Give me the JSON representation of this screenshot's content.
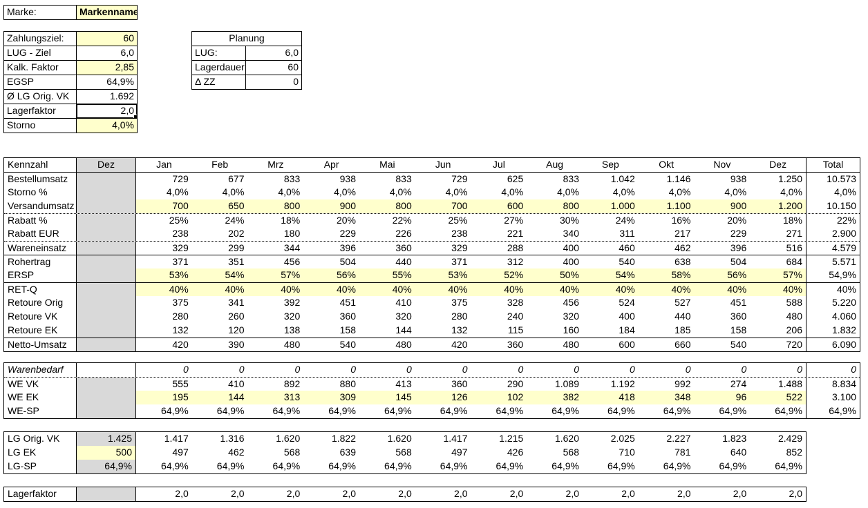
{
  "colors": {
    "highlight": "#FFFFCC",
    "input_fill": "#FFFFCC",
    "header_gray": "#D9D9D9"
  },
  "marke": {
    "label": "Marke:",
    "value": "Markenname"
  },
  "params": {
    "rows": [
      {
        "label": "Zahlungsziel:",
        "value": "60"
      },
      {
        "label": "LUG - Ziel",
        "value": "6,0"
      },
      {
        "label": "Kalk. Faktor",
        "value": "2,85"
      },
      {
        "label": "EGSP",
        "value": "64,9%"
      },
      {
        "label": "Ø LG Orig. VK",
        "value": "1.692"
      },
      {
        "label": "Lagerfaktor",
        "value": "2,0"
      },
      {
        "label": "Storno",
        "value": "4,0%"
      }
    ]
  },
  "planung": {
    "title": "Planung",
    "rows": [
      {
        "label": "LUG:",
        "value": "6,0"
      },
      {
        "label": "Lagerdauer:",
        "value": "60"
      },
      {
        "label": "Δ ZZ",
        "value": "0"
      }
    ]
  },
  "main_table": {
    "has_total": true,
    "col2_default": {
      "text": "",
      "bg": "gray"
    },
    "header": {
      "label_col": "Kennzahl",
      "col2": "Dez",
      "months": [
        "Jan",
        "Feb",
        "Mrz",
        "Apr",
        "Mai",
        "Jun",
        "Jul",
        "Aug",
        "Sep",
        "Okt",
        "Nov",
        "Dez"
      ],
      "total": "Total"
    },
    "rows": [
      {
        "label": "Bestellumsatz",
        "border_top": "solid",
        "values": [
          "729",
          "677",
          "833",
          "938",
          "833",
          "729",
          "625",
          "833",
          "1.042",
          "1.146",
          "938",
          "1.250"
        ],
        "total": "10.573"
      },
      {
        "label": "Storno %",
        "values": [
          "4,0%",
          "4,0%",
          "4,0%",
          "4,0%",
          "4,0%",
          "4,0%",
          "4,0%",
          "4,0%",
          "4,0%",
          "4,0%",
          "4,0%",
          "4,0%"
        ],
        "total": "4,0%"
      },
      {
        "label": "Versandumsatz",
        "highlight": true,
        "values": [
          "700",
          "650",
          "800",
          "900",
          "800",
          "700",
          "600",
          "800",
          "1.000",
          "1.100",
          "900",
          "1.200"
        ],
        "total": "10.150"
      },
      {
        "label": "Rabatt %",
        "border_top": "dotted",
        "values": [
          "25%",
          "24%",
          "18%",
          "20%",
          "22%",
          "25%",
          "27%",
          "30%",
          "24%",
          "16%",
          "20%",
          "18%"
        ],
        "total": "22%"
      },
      {
        "label": "Rabatt EUR",
        "values": [
          "238",
          "202",
          "180",
          "229",
          "226",
          "238",
          "221",
          "340",
          "311",
          "217",
          "229",
          "271"
        ],
        "total": "2.900"
      },
      {
        "label": "Wareneinsatz",
        "border_top": "dotted",
        "values": [
          "329",
          "299",
          "344",
          "396",
          "360",
          "329",
          "288",
          "400",
          "460",
          "462",
          "396",
          "516"
        ],
        "total": "4.579"
      },
      {
        "label": "Rohertrag",
        "border_top": "solid",
        "values": [
          "371",
          "351",
          "456",
          "504",
          "440",
          "371",
          "312",
          "400",
          "540",
          "638",
          "504",
          "684"
        ],
        "total": "5.571"
      },
      {
        "label": "ERSP",
        "highlight": true,
        "values": [
          "53%",
          "54%",
          "57%",
          "56%",
          "55%",
          "53%",
          "52%",
          "50%",
          "54%",
          "58%",
          "56%",
          "57%"
        ],
        "total": "54,9%"
      },
      {
        "label": "RET-Q",
        "border_top": "solid",
        "highlight": true,
        "values": [
          "40%",
          "40%",
          "40%",
          "40%",
          "40%",
          "40%",
          "40%",
          "40%",
          "40%",
          "40%",
          "40%",
          "40%"
        ],
        "total": "40%"
      },
      {
        "label": "Retoure Orig",
        "values": [
          "375",
          "341",
          "392",
          "451",
          "410",
          "375",
          "328",
          "456",
          "524",
          "527",
          "451",
          "588"
        ],
        "total": "5.220"
      },
      {
        "label": "Retoure VK",
        "values": [
          "280",
          "260",
          "320",
          "360",
          "320",
          "280",
          "240",
          "320",
          "400",
          "440",
          "360",
          "480"
        ],
        "total": "4.060"
      },
      {
        "label": "Retoure EK",
        "values": [
          "132",
          "120",
          "138",
          "158",
          "144",
          "132",
          "115",
          "160",
          "184",
          "185",
          "158",
          "206"
        ],
        "total": "1.832"
      },
      {
        "label": "Netto-Umsatz",
        "border_top": "solid",
        "values": [
          "420",
          "390",
          "480",
          "540",
          "480",
          "420",
          "360",
          "480",
          "600",
          "660",
          "540",
          "720"
        ],
        "total": "6.090"
      }
    ]
  },
  "warenbedarf_table": {
    "has_total": true,
    "col2_default": {
      "text": "",
      "bg": "gray"
    },
    "rows": [
      {
        "label": "Warenbedarf",
        "italic": true,
        "col2": {
          "text": "",
          "bg": "white"
        },
        "values": [
          "0",
          "0",
          "0",
          "0",
          "0",
          "0",
          "0",
          "0",
          "0",
          "0",
          "0",
          "0"
        ],
        "total": "0"
      },
      {
        "label": "WE VK",
        "border_top": "dotted",
        "values": [
          "555",
          "410",
          "892",
          "880",
          "413",
          "360",
          "290",
          "1.089",
          "1.192",
          "992",
          "274",
          "1.488"
        ],
        "total": "8.834"
      },
      {
        "label": "WE EK",
        "highlight": true,
        "values": [
          "195",
          "144",
          "313",
          "309",
          "145",
          "126",
          "102",
          "382",
          "418",
          "348",
          "96",
          "522"
        ],
        "total": "3.100"
      },
      {
        "label": "WE-SP",
        "values": [
          "64,9%",
          "64,9%",
          "64,9%",
          "64,9%",
          "64,9%",
          "64,9%",
          "64,9%",
          "64,9%",
          "64,9%",
          "64,9%",
          "64,9%",
          "64,9%"
        ],
        "total": "64,9%"
      }
    ]
  },
  "lg_table": {
    "has_total": false,
    "col2_default": {
      "text": "",
      "bg": "gray"
    },
    "rows": [
      {
        "label": "LG Orig. VK",
        "col2": {
          "text": "1.425",
          "bg": "gray"
        },
        "values": [
          "1.417",
          "1.316",
          "1.620",
          "1.822",
          "1.620",
          "1.417",
          "1.215",
          "1.620",
          "2.025",
          "2.227",
          "1.823",
          "2.429"
        ]
      },
      {
        "label": "LG EK",
        "col2": {
          "text": "500",
          "bg": "yellow"
        },
        "values": [
          "497",
          "462",
          "568",
          "639",
          "568",
          "497",
          "426",
          "568",
          "710",
          "781",
          "640",
          "852"
        ]
      },
      {
        "label": "LG-SP",
        "col2": {
          "text": "64,9%",
          "bg": "gray"
        },
        "values": [
          "64,9%",
          "64,9%",
          "64,9%",
          "64,9%",
          "64,9%",
          "64,9%",
          "64,9%",
          "64,9%",
          "64,9%",
          "64,9%",
          "64,9%",
          "64,9%"
        ]
      }
    ]
  },
  "lagerfaktor_table": {
    "has_total": false,
    "col2_default": {
      "text": "",
      "bg": "gray"
    },
    "rows": [
      {
        "label": "Lagerfaktor",
        "values": [
          "2,0",
          "2,0",
          "2,0",
          "2,0",
          "2,0",
          "2,0",
          "2,0",
          "2,0",
          "2,0",
          "2,0",
          "2,0",
          "2,0"
        ]
      }
    ]
  }
}
